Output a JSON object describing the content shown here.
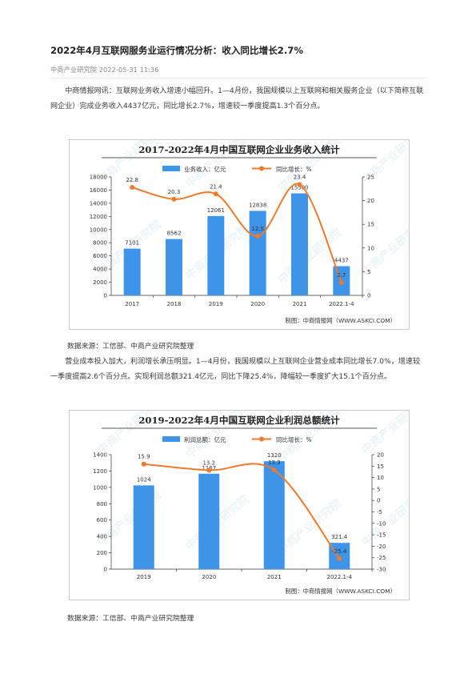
{
  "article": {
    "title": "2022年4月互联网服务业运行情况分析：收入同比增长2.7%",
    "meta": "中商产业研究院 2022-05-31 11:36",
    "paragraph1": "中商情报网讯：互联网业务收入增速小幅回升。1—4月份，我国规模以上互联网和相关服务企业（以下简称互联网企业）完成业务收入4437亿元，同比增长2.7%，增速较一季度提高1.3个百分点。",
    "source1": "数据来源：工信部、中商产业研究院整理",
    "paragraph2": "营业成本投入加大，利润增长承压明显。1—4月份，我国规模以上互联网企业营业成本同比增长7.0%，增速较一季度提高2.6个百分点。实现利润总额321.4亿元，同比下降25.4%，降幅较一季度扩大15.1个百分点。",
    "source2": "数据来源：工信部、中商产业研究院整理"
  },
  "watermark": "中商产业研究院",
  "colors": {
    "bar": "#3d94e8",
    "line": "#f07a2c"
  },
  "chart_data": [
    {
      "type": "bar",
      "title": "2017-2022年4月中国互联网企业业务收入统计",
      "categories": [
        "2017",
        "2018",
        "2019",
        "2020",
        "2021",
        "2022.1-4"
      ],
      "series": [
        {
          "name": "业务收入：亿元",
          "type": "bar",
          "axis": "left",
          "values": [
            7101,
            8562,
            12061,
            12838,
            15500,
            4437
          ],
          "labels": [
            "7101",
            "8562",
            "12061",
            "12838",
            "15500",
            "4437"
          ]
        },
        {
          "name": "同比增长：%",
          "type": "line",
          "axis": "right",
          "values": [
            22.8,
            20.3,
            21.4,
            12.5,
            23.4,
            2.7
          ],
          "labels": [
            "22.8",
            "20.3",
            "21.4",
            "12.5",
            "23.4",
            "2.7"
          ]
        }
      ],
      "ylim_left": [
        0,
        18000
      ],
      "yticks_left": [
        0,
        2000,
        4000,
        6000,
        8000,
        10000,
        12000,
        14000,
        16000,
        18000
      ],
      "ylim_right": [
        0,
        25
      ],
      "yticks_right": [
        0,
        5,
        10,
        15,
        20,
        25
      ],
      "legend": "top",
      "grid": false,
      "credit": "制图：中商情报网（WWW.ASKCI.COM）"
    },
    {
      "type": "bar",
      "title": "2019-2022年4月中国互联网企业利润总额统计",
      "categories": [
        "2019",
        "2020",
        "2021",
        "2022.1-4"
      ],
      "series": [
        {
          "name": "利润总额：亿元",
          "type": "bar",
          "axis": "left",
          "values": [
            1024,
            1167,
            1320,
            321.4
          ],
          "labels": [
            "1024",
            "1167",
            "1320",
            "321.4"
          ]
        },
        {
          "name": "同比增长：%",
          "type": "line",
          "axis": "right",
          "values": [
            15.9,
            13.2,
            13.3,
            -25.4
          ],
          "labels": [
            "15.9",
            "13.2",
            "13.3",
            "-25.4"
          ]
        }
      ],
      "ylim_left": [
        0,
        1400
      ],
      "yticks_left": [
        0,
        200,
        400,
        600,
        800,
        1000,
        1200,
        1400
      ],
      "ylim_right": [
        -30,
        20
      ],
      "yticks_right": [
        -30,
        -25,
        -20,
        -15,
        -10,
        -5,
        0,
        5,
        10,
        15,
        20
      ],
      "legend": "top",
      "grid": false,
      "credit": "制图：中商情报网（WWW.ASKCI.COM）"
    }
  ]
}
